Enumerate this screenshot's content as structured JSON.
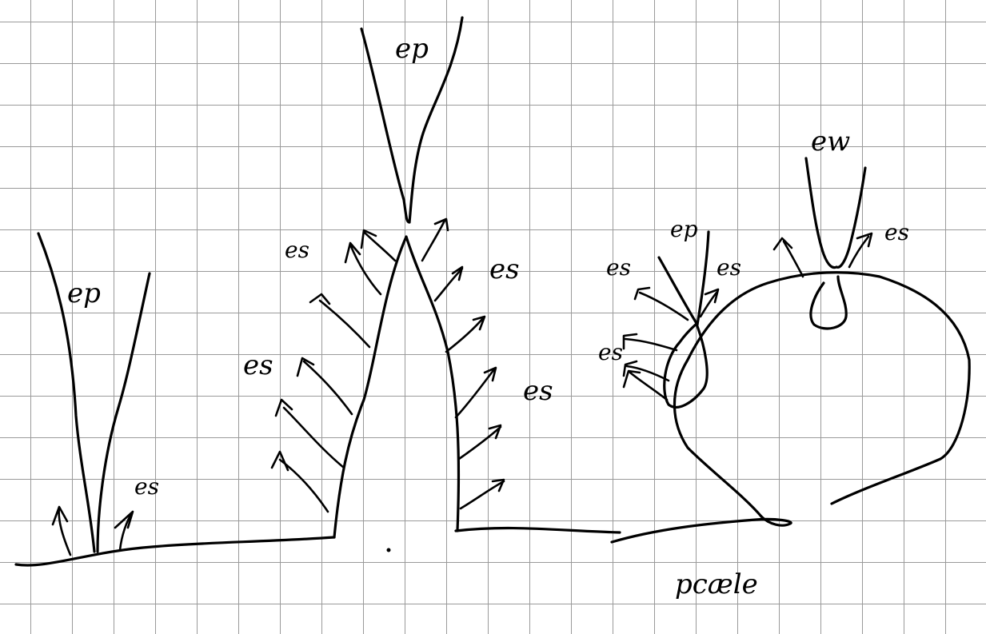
{
  "labels": {
    "top_center": "ep",
    "left_tall": "ep",
    "left_small": "es",
    "peak_left_top": "es",
    "peak_right_top": "es",
    "peak_left_mid": "es",
    "peak_right_mid": "es",
    "blob_left_top": "es",
    "blob_ep": "ep",
    "blob_small": "es",
    "blob_left_mid": "es",
    "blob_top": "ew",
    "blob_right": "es",
    "bottom_word": "pcæle"
  }
}
